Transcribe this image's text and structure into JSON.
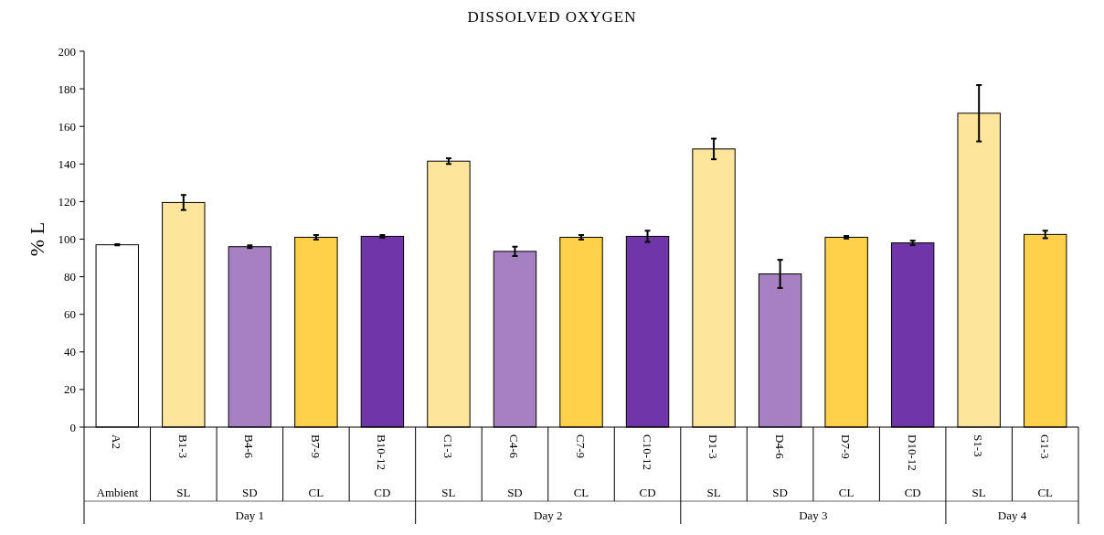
{
  "chart_data": {
    "type": "bar",
    "title": "DISSOLVED OXYGEN",
    "ylabel": "% L",
    "categories": [
      "A2",
      "B1-3",
      "B4-6",
      "B7-9",
      "B10-12",
      "C1-3",
      "C4-6",
      "C7-9",
      "C10-12",
      "D1-3",
      "D4-6",
      "D7-9",
      "D10-12",
      "S1-3",
      "G1-3"
    ],
    "values": [
      97,
      119.5,
      96,
      101,
      101.5,
      141.5,
      93.5,
      101,
      101.5,
      148,
      81.5,
      101,
      98,
      167,
      102.5
    ],
    "errors": [
      0.3,
      4,
      0.7,
      1.2,
      0.7,
      1.5,
      2.5,
      1.2,
      3,
      5.5,
      7.5,
      0.7,
      1.2,
      15,
      2
    ],
    "colors": [
      "#ffffff",
      "#fee59c",
      "#a680c2",
      "#ffd04a",
      "#7035a8",
      "#fee59c",
      "#a680c2",
      "#ffd04a",
      "#7035a8",
      "#fee59c",
      "#a680c2",
      "#ffd04a",
      "#7035a8",
      "#fee59c",
      "#ffd04a"
    ],
    "ylim": [
      0,
      200
    ],
    "yticks": [
      0,
      20,
      40,
      60,
      80,
      100,
      120,
      140,
      160,
      180,
      200
    ],
    "annotations": [
      "Ambient",
      "SL",
      "SD",
      "CL",
      "CD",
      "SL",
      "SD",
      "CL",
      "CD",
      "SL",
      "SD",
      "CL",
      "CD",
      "SL",
      "CL",
      "Day 1",
      "Day 2",
      "Day 3",
      "Day 4"
    ]
  }
}
